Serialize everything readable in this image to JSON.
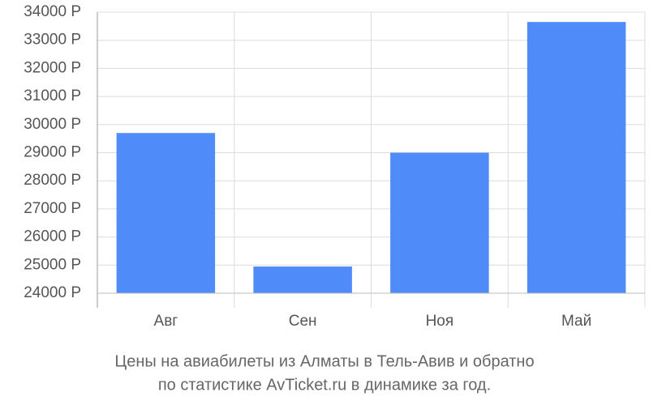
{
  "chart_data": {
    "type": "bar",
    "title": [
      "Цены на авиабилеты из Алматы в Тель-Авив и обратно",
      "по статистике AvTicket.ru в динамике за год."
    ],
    "categories": [
      "Авг",
      "Сен",
      "Ноя",
      "Май"
    ],
    "values": [
      29700,
      24950,
      29000,
      33650
    ],
    "color": "#4f8bf9",
    "ylim": [
      24000,
      34000
    ],
    "yticks": [
      {
        "value": 24000,
        "label": "24000 Р"
      },
      {
        "value": 25000,
        "label": "25000 Р"
      },
      {
        "value": 26000,
        "label": "26000 Р"
      },
      {
        "value": 27000,
        "label": "27000 Р"
      },
      {
        "value": 28000,
        "label": "28000 Р"
      },
      {
        "value": 29000,
        "label": "29000 Р"
      },
      {
        "value": 30000,
        "label": "30000 Р"
      },
      {
        "value": 31000,
        "label": "31000 Р"
      },
      {
        "value": 32000,
        "label": "32000 Р"
      },
      {
        "value": 33000,
        "label": "33000 Р"
      },
      {
        "value": 34000,
        "label": "34000 Р"
      }
    ],
    "grid": true
  }
}
